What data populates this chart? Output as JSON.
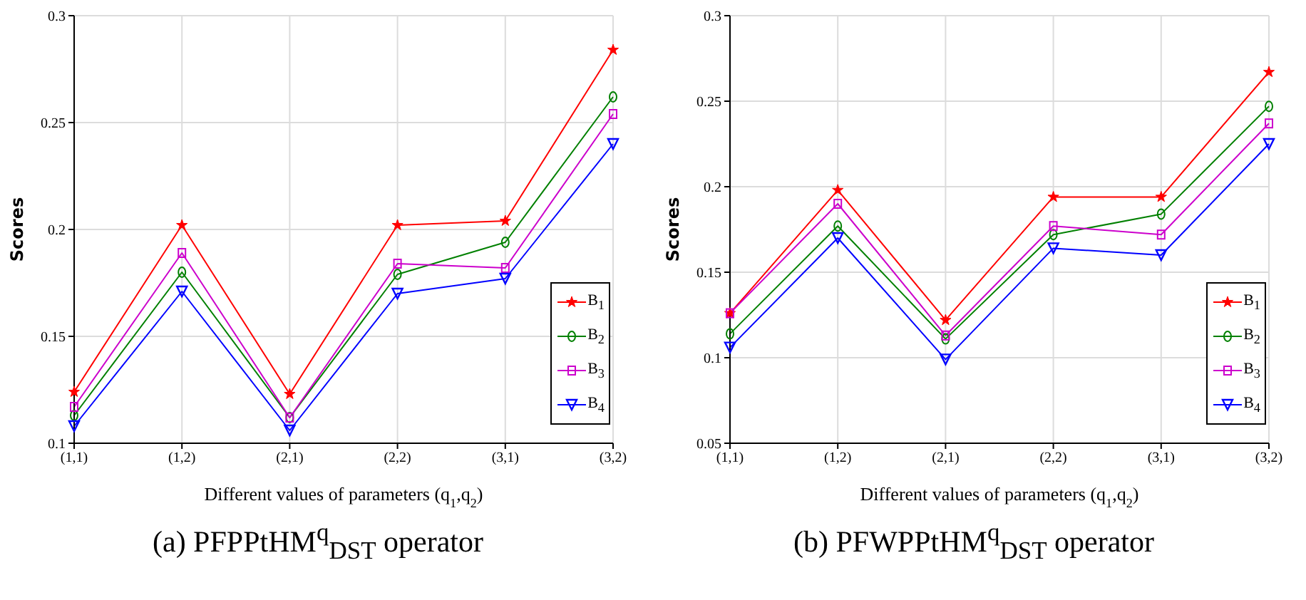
{
  "chart_data": [
    {
      "type": "line",
      "xlabel": "Different values of parameters (q$_{1}$,q$_{2}$)",
      "ylabel": "Scores",
      "annotations": [
        "(a) PFPPtHM$^{q}$$_{DST}$ operator"
      ],
      "categories": [
        "(1,1)",
        "(1,2)",
        "(2,1)",
        "(2,2)",
        "(3,1)",
        "(3,2)"
      ],
      "ylim": [
        0.1,
        0.3
      ],
      "yticks": [
        0.1,
        0.15,
        0.2,
        0.25,
        0.3
      ],
      "grid": true,
      "legend": "bottom right",
      "series": [
        {
          "name": "B$_{1}$",
          "color": "#ff0000",
          "marker": "star",
          "values": [
            0.124,
            0.202,
            0.123,
            0.202,
            0.204,
            0.284
          ]
        },
        {
          "name": "B$_{2}$",
          "color": "#008000",
          "marker": "circle",
          "values": [
            0.113,
            0.18,
            0.112,
            0.179,
            0.194,
            0.262
          ]
        },
        {
          "name": "B$_{3}$",
          "color": "#cc00cc",
          "marker": "square",
          "values": [
            0.117,
            0.189,
            0.112,
            0.184,
            0.182,
            0.254
          ]
        },
        {
          "name": "B$_{4}$",
          "color": "#0000ff",
          "marker": "triangle",
          "values": [
            0.108,
            0.171,
            0.106,
            0.17,
            0.177,
            0.24
          ]
        }
      ]
    },
    {
      "type": "line",
      "xlabel": "Different values of parameters (q$_{1}$,q$_{2}$)",
      "ylabel": "Scores",
      "annotations": [
        "(b) PFWPPtHM$^{q}$$_{DST}$ operator"
      ],
      "categories": [
        "(1,1)",
        "(1,2)",
        "(2,1)",
        "(2,2)",
        "(3,1)",
        "(3,2)"
      ],
      "ylim": [
        0.05,
        0.3
      ],
      "yticks": [
        0.05,
        0.1,
        0.15,
        0.2,
        0.25,
        0.3
      ],
      "grid": true,
      "legend": "bottom right",
      "series": [
        {
          "name": "B$_{1}$",
          "color": "#ff0000",
          "marker": "star",
          "values": [
            0.126,
            0.198,
            0.122,
            0.194,
            0.194,
            0.267
          ]
        },
        {
          "name": "B$_{2}$",
          "color": "#008000",
          "marker": "circle",
          "values": [
            0.114,
            0.177,
            0.111,
            0.172,
            0.184,
            0.247
          ]
        },
        {
          "name": "B$_{3}$",
          "color": "#cc00cc",
          "marker": "square",
          "values": [
            0.126,
            0.19,
            0.113,
            0.177,
            0.172,
            0.237
          ]
        },
        {
          "name": "B$_{4}$",
          "color": "#0000ff",
          "marker": "triangle",
          "values": [
            0.106,
            0.17,
            0.099,
            0.164,
            0.16,
            0.225
          ]
        }
      ]
    }
  ]
}
